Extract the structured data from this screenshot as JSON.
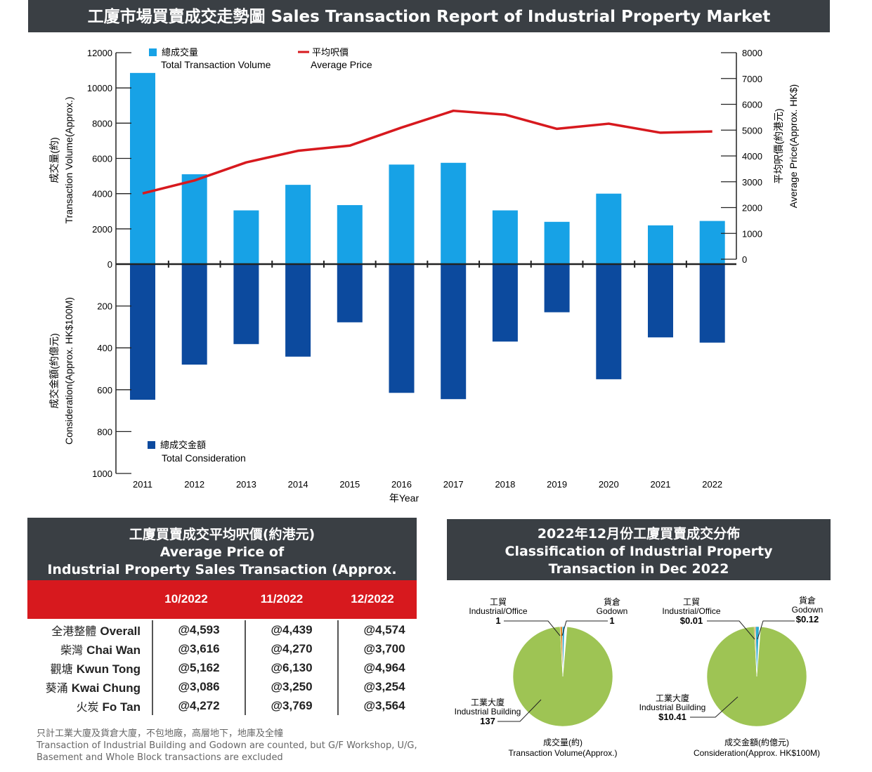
{
  "title": "工廈市場買賣成交走勢圖 Sales Transaction Report of Industrial Property Market",
  "colors": {
    "light_blue": "#17a2e6",
    "dark_blue": "#0c4a9e",
    "red": "#d7191e",
    "banner": "#3a3f44",
    "pie_green": "#9ec454",
    "pie_teal": "#2aa8d0",
    "pie_orange": "#e08a2a"
  },
  "chart_data": [
    {
      "type": "bar+line",
      "categories": [
        "2011",
        "2012",
        "2013",
        "2014",
        "2015",
        "2016",
        "2017",
        "2018",
        "2019",
        "2020",
        "2021",
        "2022"
      ],
      "xlabel": "年Year",
      "series": [
        {
          "name": "總成交量",
          "name_en": "Total Transaction Volume",
          "axis": "upper-left",
          "type": "bar",
          "values": [
            10850,
            5100,
            3050,
            4500,
            3350,
            5650,
            5750,
            3050,
            2400,
            4000,
            2200,
            2450
          ]
        },
        {
          "name": "總成交金額",
          "name_en": "Total Consideration",
          "axis": "lower-left",
          "type": "bar",
          "values": [
            648,
            480,
            382,
            442,
            278,
            615,
            645,
            370,
            230,
            550,
            350,
            375
          ]
        },
        {
          "name": "平均呎價",
          "name_en": "Average Price",
          "axis": "right",
          "type": "line",
          "values": [
            2550,
            3050,
            3750,
            4200,
            4400,
            5100,
            5750,
            5600,
            5050,
            5250,
            4900,
            4950
          ]
        }
      ],
      "upper_axis": {
        "label_zh": "成交量(約)",
        "label_en": "Transaction Volume(Approx.)",
        "ylim": [
          0,
          12000
        ],
        "ticks": [
          "0",
          "2000",
          "4000",
          "6000",
          "8000",
          "10000",
          "12000"
        ]
      },
      "lower_axis": {
        "label_zh": "成交金額(約億元)",
        "label_en": "Consideration(Approx. HK$100M)",
        "ylim": [
          0,
          1000
        ],
        "ticks": [
          "200",
          "400",
          "600",
          "800",
          "1000"
        ]
      },
      "right_axis": {
        "label_zh": "平均呎價(約港元)",
        "label_en": "Average Price(Approx. HK$)",
        "ylim": [
          0,
          8000
        ],
        "ticks": [
          "0",
          "1000",
          "2000",
          "3000",
          "4000",
          "5000",
          "6000",
          "7000",
          "8000"
        ]
      }
    },
    {
      "type": "pie",
      "title": "成交量(約)",
      "title_en": "Transaction Volume(Approx.)",
      "slices": [
        {
          "name": "工業大廈",
          "name_en": "Industrial Building",
          "value": 137,
          "label": "137"
        },
        {
          "name": "工貿",
          "name_en": "Industrial/Office",
          "value": 1,
          "label": "1"
        },
        {
          "name": "貨倉",
          "name_en": "Godown",
          "value": 1,
          "label": "1"
        }
      ]
    },
    {
      "type": "pie",
      "title": "成交金額(約億元)",
      "title_en": "Consideration(Approx. HK$100M)",
      "slices": [
        {
          "name": "工業大廈",
          "name_en": "Industrial Building",
          "value": 10.41,
          "label": "$10.41"
        },
        {
          "name": "工貿",
          "name_en": "Industrial/Office",
          "value": 0.01,
          "label": "$0.01"
        },
        {
          "name": "貨倉",
          "name_en": "Godown",
          "value": 0.12,
          "label": "$0.12"
        }
      ]
    }
  ],
  "avg_table": {
    "title_lines": [
      "工廈買賣成交平均呎價(約港元)",
      "Average Price of",
      "Industrial Property Sales Transaction (Approx. HK$)"
    ],
    "columns": [
      "10/2022",
      "11/2022",
      "12/2022"
    ],
    "rows": [
      {
        "zh": "全港整體",
        "en": "Overall",
        "values": [
          "@4,593",
          "@4,439",
          "@4,574"
        ]
      },
      {
        "zh": "柴灣",
        "en": "Chai Wan",
        "values": [
          "@3,616",
          "@4,270",
          "@3,700"
        ]
      },
      {
        "zh": "觀塘",
        "en": "Kwun Tong",
        "values": [
          "@5,162",
          "@6,130",
          "@4,964"
        ]
      },
      {
        "zh": "葵涌",
        "en": "Kwai Chung",
        "values": [
          "@3,086",
          "@3,250",
          "@3,254"
        ]
      },
      {
        "zh": "火炭",
        "en": "Fo Tan",
        "values": [
          "@4,272",
          "@3,769",
          "@3,564"
        ]
      }
    ]
  },
  "footnote": [
    "只計工業大廈及貨倉大廈，不包地廠，高層地下，地庫及全幢",
    "Transaction of Industrial Building and Godown are counted, but G/F Workshop, U/G,",
    "Basement and Whole Block transactions are excluded"
  ],
  "pie_section": {
    "title_lines": [
      "2022年12月份工廈買賣成交分佈",
      "Classification of Industrial Property",
      "Transaction in Dec 2022"
    ]
  }
}
